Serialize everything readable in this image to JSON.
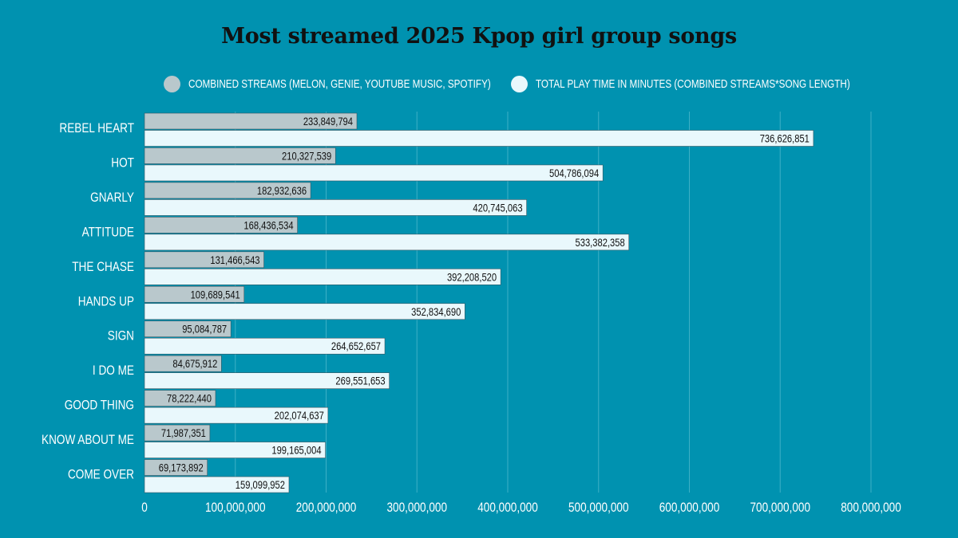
{
  "colors": {
    "background": "#0092b0",
    "streams_bar": "#b9c8cc",
    "playtime_bar": "#e9f8fc",
    "gridline": "#3eb0c6",
    "text_light": "#ffffff",
    "text_dark": "#111111"
  },
  "chart_data": {
    "type": "bar",
    "orientation": "horizontal",
    "title": "Most streamed 2025 Kpop girl group songs",
    "categories": [
      "REBEL HEART",
      "HOT",
      "GNARLY",
      "ATTITUDE",
      "THE CHASE",
      "HANDS UP",
      "SIGN",
      "I DO ME",
      "GOOD THING",
      "KNOW ABOUT ME",
      "COME OVER"
    ],
    "series": [
      {
        "name": "COMBINED STREAMS (MELON, GENIE, YOUTUBE MUSIC, SPOTIFY)",
        "color": "#b9c8cc",
        "values": [
          233849794,
          210327539,
          182932636,
          168436534,
          131466543,
          109689541,
          95084787,
          84675912,
          78222440,
          71987351,
          69173892
        ],
        "labels": [
          "233,849,794",
          "210,327,539",
          "182,932,636",
          "168,436,534",
          "131,466,543",
          "109,689,541",
          "95,084,787",
          "84,675,912",
          "78,222,440",
          "71,987,351",
          "69,173,892"
        ]
      },
      {
        "name": "TOTAL PLAY TIME IN MINUTES (COMBINED STREAMS*SONG LENGTH)",
        "color": "#e9f8fc",
        "values": [
          736626851,
          504786094,
          420745063,
          533382358,
          392208520,
          352834690,
          264652657,
          269551653,
          202074637,
          199165004,
          159099952
        ],
        "labels": [
          "736,626,851",
          "504,786,094",
          "420,745,063",
          "533,382,358",
          "392,208,520",
          "352,834,690",
          "264,652,657",
          "269,551,653",
          "202,074,637",
          "199,165,004",
          "159,099,952"
        ]
      }
    ],
    "xlim": [
      0,
      800000000
    ],
    "xticks": [
      0,
      100000000,
      200000000,
      300000000,
      400000000,
      500000000,
      600000000,
      700000000,
      800000000
    ],
    "xtick_labels": [
      "0",
      "100,000,000",
      "200,000,000",
      "300,000,000",
      "400,000,000",
      "500,000,000",
      "600,000,000",
      "700,000,000",
      "800,000,000"
    ],
    "grid": true,
    "legend_position": "top-center"
  }
}
